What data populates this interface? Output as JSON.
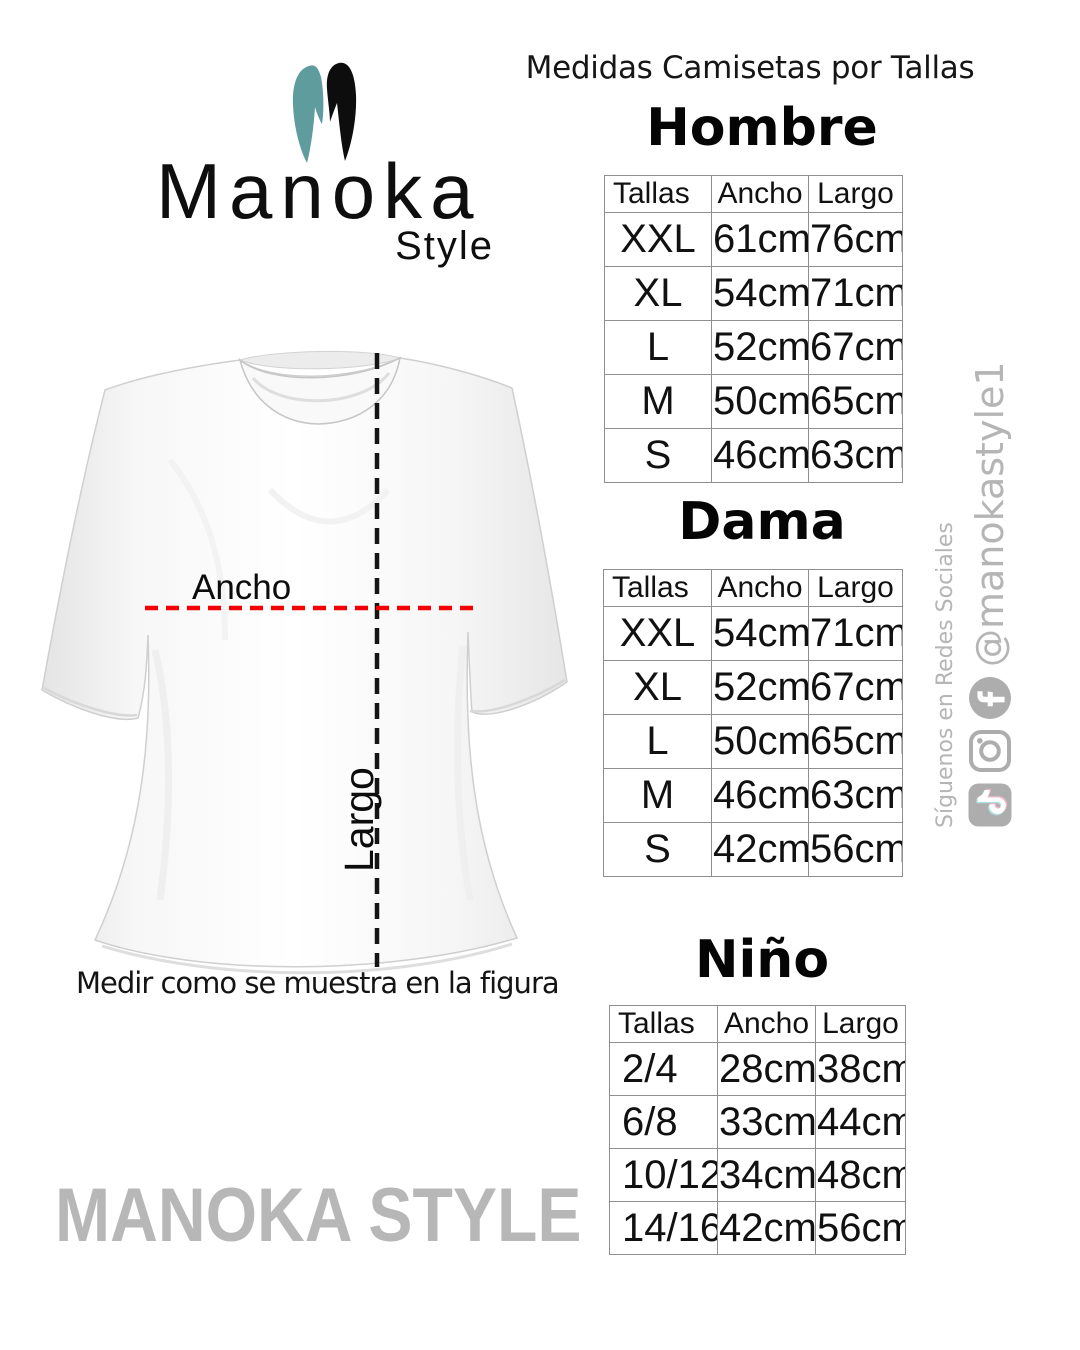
{
  "page": {
    "title": "Medidas Camisetas por Tallas",
    "caption": "Medir como se muestra en la figura",
    "watermark": "MANOKA STYLE"
  },
  "logo": {
    "name": "Manoka",
    "sub": "Style"
  },
  "diagram": {
    "width_label": "Ancho",
    "length_label": "Largo"
  },
  "social": {
    "follow_text": "Síguenos en Redes Sociales",
    "handle": "@manokastyle1",
    "icons": [
      "tiktok-icon",
      "instagram-icon",
      "facebook-icon"
    ]
  },
  "colors": {
    "logo_teal": "#5f9c9e",
    "measure_red": "#f40000",
    "measure_black": "#151515",
    "muted_gray": "#b5b5b5",
    "table_border": "#8f8f8f"
  },
  "tables": {
    "hombre": {
      "heading": "Hombre",
      "headers": [
        "Tallas",
        "Ancho",
        "Largo"
      ],
      "rows": [
        [
          "XXL",
          "61cm",
          "76cm"
        ],
        [
          "XL",
          "54cm",
          "71cm"
        ],
        [
          "L",
          "52cm",
          "67cm"
        ],
        [
          "M",
          "50cm",
          "65cm"
        ],
        [
          "S",
          "46cm",
          "63cm"
        ]
      ]
    },
    "dama": {
      "heading": "Dama",
      "headers": [
        "Tallas",
        "Ancho",
        "Largo"
      ],
      "rows": [
        [
          "XXL",
          "54cm",
          "71cm"
        ],
        [
          "XL",
          "52cm",
          "67cm"
        ],
        [
          "L",
          "50cm",
          "65cm"
        ],
        [
          "M",
          "46cm",
          "63cm"
        ],
        [
          "S",
          "42cm",
          "56cm"
        ]
      ]
    },
    "nino": {
      "heading": "Niño",
      "headers": [
        "Tallas",
        "Ancho",
        "Largo"
      ],
      "rows": [
        [
          "2/4",
          "28cm",
          "38cm"
        ],
        [
          "6/8",
          "33cm",
          "44cm"
        ],
        [
          "10/12",
          "34cm",
          "48cm"
        ],
        [
          "14/16",
          "42cm",
          "56cm"
        ]
      ]
    }
  }
}
